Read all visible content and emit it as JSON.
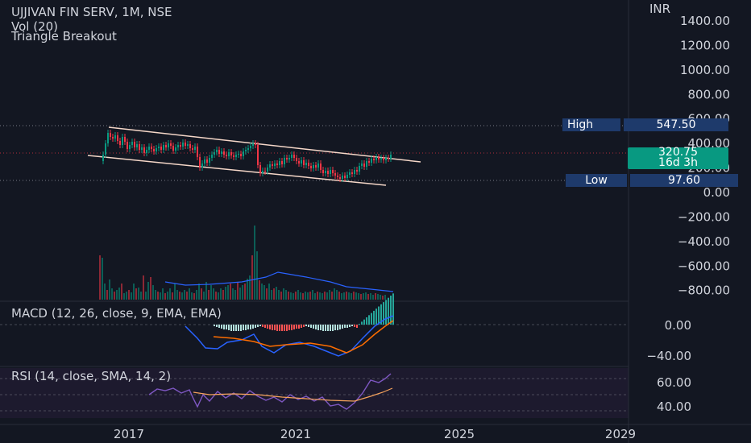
{
  "header": {
    "title": "UJJIVAN FIN SERV, 1M, NSE",
    "volume_label": "Vol (20)",
    "idea_label": "Triangle Breakout"
  },
  "currency": "INR",
  "price_axis": [
    "1400.00",
    "1200.00",
    "1000.00",
    "800.00",
    "600.00",
    "400.00",
    "200.00",
    "0.00",
    "−200.00",
    "−400.00",
    "−600.00",
    "−800.00"
  ],
  "tags": {
    "high_label": "High",
    "high_value": "547.50",
    "low_label": "Low",
    "low_value": "97.60",
    "last_price": "320.75",
    "countdown": "16d 3h"
  },
  "macd": {
    "label": "MACD (12, 26, close, 9, EMA, EMA)",
    "axis": [
      "0.00",
      "−40.00"
    ]
  },
  "rsi": {
    "label": "RSI (14, close, SMA, 14, 2)",
    "axis": [
      "60.00",
      "40.00"
    ]
  },
  "time_axis": [
    "2017",
    "2021",
    "2025",
    "2029"
  ],
  "colors": {
    "up": "#089981",
    "down": "#f23645",
    "background": "#131722",
    "macd": "#2962ff",
    "signal": "#ff6d00",
    "rsi": "#7e57c2",
    "rsi_ma": "#f7a35c",
    "channel": "#f5d7c8"
  },
  "chart_data": {
    "type": "candlestick",
    "title": "UJJIVAN FIN SERV, 1M, NSE",
    "interval": "1M",
    "yunit": "INR",
    "ylim": [
      -900,
      1450
    ],
    "x_ticks": [
      "2017",
      "2021",
      "2025",
      "2029"
    ],
    "annotations": [
      "Triangle Breakout",
      "High 547.50",
      "Low 97.60"
    ],
    "ohlc": [],
    "channel": {
      "upper": [
        [
          2016.5,
          490
        ],
        [
          2024.0,
          230
        ]
      ],
      "lower": [
        [
          2016.5,
          330
        ],
        [
          2023.7,
          65
        ]
      ]
    },
    "volume_ma_period": 20,
    "macd_params": [
      12,
      26,
      9
    ],
    "rsi_params": [
      14,
      14,
      2
    ]
  }
}
